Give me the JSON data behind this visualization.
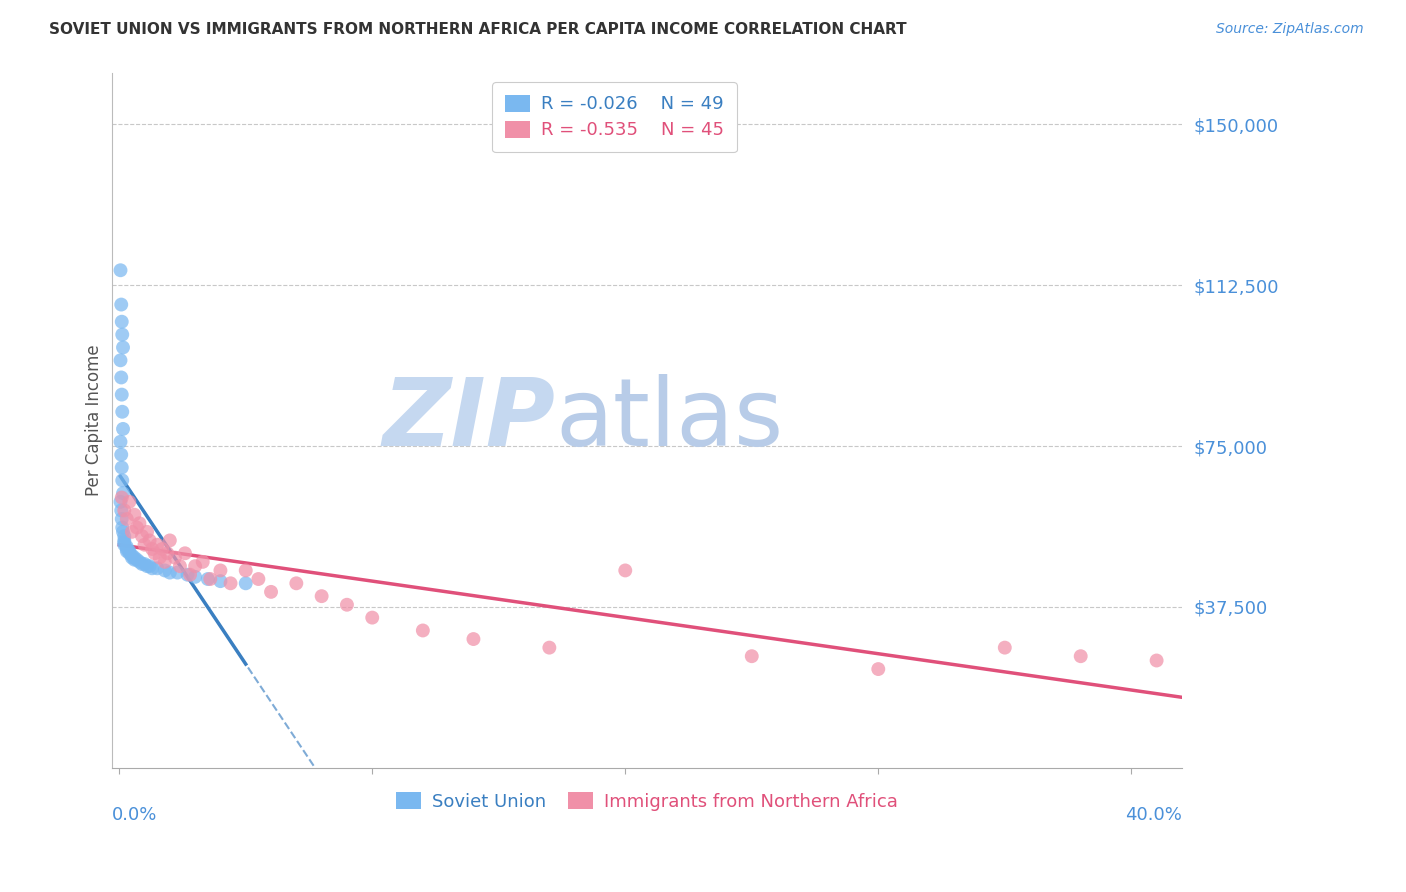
{
  "title": "SOVIET UNION VS IMMIGRANTS FROM NORTHERN AFRICA PER CAPITA INCOME CORRELATION CHART",
  "source": "Source: ZipAtlas.com",
  "ylabel": "Per Capita Income",
  "ytick_labels": [
    "$37,500",
    "$75,000",
    "$112,500",
    "$150,000"
  ],
  "ytick_values": [
    37500,
    75000,
    112500,
    150000
  ],
  "ymin": 0,
  "ymax": 162000,
  "xmin": -0.003,
  "xmax": 0.42,
  "legend_r1": "R = -0.026",
  "legend_n1": "N = 49",
  "legend_r2": "R = -0.535",
  "legend_n2": "N = 45",
  "color_blue": "#7ab8f0",
  "color_pink": "#f090a8",
  "color_blue_line": "#3a7fc1",
  "color_pink_line": "#e0507a",
  "color_title": "#333333",
  "color_source": "#4a90d9",
  "color_ytick": "#4a90d9",
  "color_xtick": "#4a90d9",
  "color_grid": "#c8c8c8",
  "watermark_zip": "#c5d8f0",
  "watermark_atlas": "#c5d8f0",
  "soviet_x": [
    0.0005,
    0.0008,
    0.001,
    0.0012,
    0.0015,
    0.0005,
    0.0008,
    0.001,
    0.0012,
    0.0015,
    0.0005,
    0.0008,
    0.001,
    0.0012,
    0.0015,
    0.0005,
    0.0008,
    0.001,
    0.0012,
    0.0015,
    0.002,
    0.002,
    0.002,
    0.002,
    0.003,
    0.003,
    0.003,
    0.004,
    0.004,
    0.005,
    0.005,
    0.006,
    0.006,
    0.007,
    0.008,
    0.009,
    0.01,
    0.011,
    0.012,
    0.013,
    0.015,
    0.018,
    0.02,
    0.023,
    0.027,
    0.03,
    0.035,
    0.04,
    0.05
  ],
  "soviet_y": [
    116000,
    108000,
    104000,
    101000,
    98000,
    95000,
    91000,
    87000,
    83000,
    79000,
    76000,
    73000,
    70000,
    67000,
    64000,
    62000,
    60000,
    58000,
    56000,
    55000,
    54000,
    53000,
    52500,
    52000,
    51500,
    51000,
    50500,
    50500,
    50000,
    49500,
    49000,
    49000,
    48500,
    48500,
    48000,
    47500,
    47500,
    47000,
    47000,
    46500,
    46500,
    46000,
    45500,
    45500,
    45000,
    44500,
    44000,
    43500,
    43000
  ],
  "africa_x": [
    0.001,
    0.002,
    0.003,
    0.004,
    0.005,
    0.006,
    0.007,
    0.008,
    0.009,
    0.01,
    0.011,
    0.012,
    0.013,
    0.014,
    0.015,
    0.016,
    0.017,
    0.018,
    0.019,
    0.02,
    0.022,
    0.024,
    0.026,
    0.028,
    0.03,
    0.033,
    0.036,
    0.04,
    0.044,
    0.05,
    0.055,
    0.06,
    0.07,
    0.08,
    0.09,
    0.1,
    0.12,
    0.14,
    0.17,
    0.2,
    0.25,
    0.3,
    0.35,
    0.38,
    0.41
  ],
  "africa_y": [
    63000,
    60000,
    58000,
    62000,
    55000,
    59000,
    56000,
    57000,
    54000,
    52000,
    55000,
    53000,
    51000,
    50000,
    52000,
    49000,
    51000,
    48000,
    50000,
    53000,
    49000,
    47000,
    50000,
    45000,
    47000,
    48000,
    44000,
    46000,
    43000,
    46000,
    44000,
    41000,
    43000,
    40000,
    38000,
    35000,
    32000,
    30000,
    28000,
    46000,
    26000,
    23000,
    28000,
    26000,
    25000
  ],
  "xtick_positions": [
    0.0,
    0.1,
    0.2,
    0.3,
    0.4
  ]
}
